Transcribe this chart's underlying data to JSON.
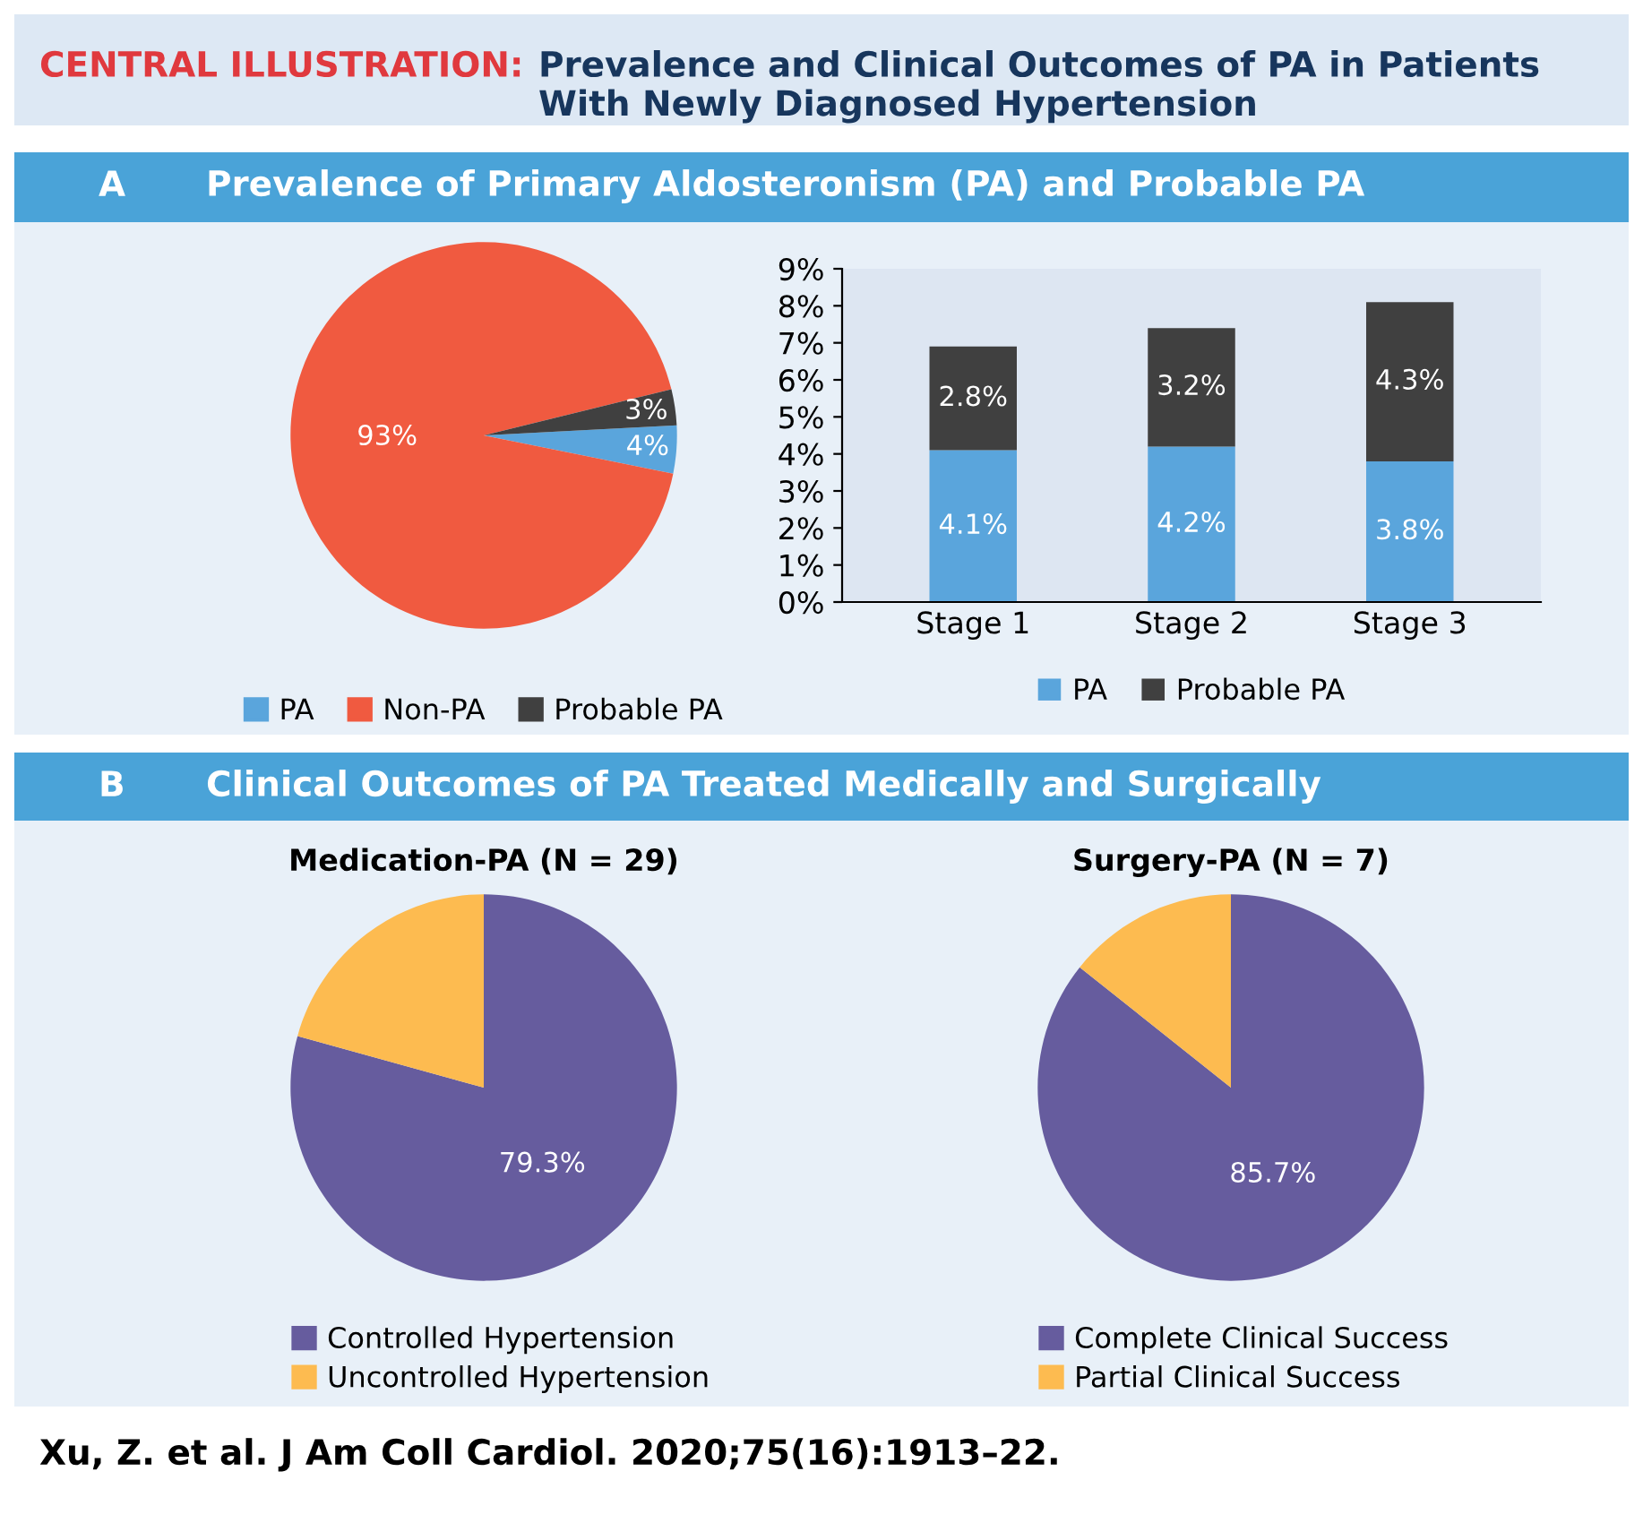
{
  "chart_data": [
    {
      "type": "other",
      "title": "CENTRAL ILLUSTRATION:",
      "subtitle": "Prevalence and Clinical Outcomes of PA in Patients With Newly Diagnosed Hypertension",
      "annotations": [
        "A",
        "Prevalence of Primary Aldosteronism (PA) and Probable PA",
        "B",
        "Clinical Outcomes of PA Treated Medically and Surgically",
        "Xu, Z. et al. J Am Coll Cardiol. 2020;75(16):1913–22."
      ]
    },
    {
      "type": "pie",
      "categories": [
        "PA",
        "Non-PA",
        "Probable PA"
      ],
      "values": [
        4,
        93,
        3
      ],
      "colors": [
        "#5aa5dc",
        "#f05a40",
        "#404040"
      ],
      "value_labels": [
        "4%",
        "93%",
        "3%"
      ],
      "legend": "bottom"
    },
    {
      "type": "bar",
      "stacked": true,
      "categories": [
        "Stage 1",
        "Stage 2",
        "Stage 3"
      ],
      "series": [
        {
          "name": "PA",
          "color": "#5aa5dc",
          "values": [
            4.1,
            4.2,
            3.8
          ],
          "value_labels": [
            "4.1%",
            "4.2%",
            "3.8%"
          ]
        },
        {
          "name": "Probable PA",
          "color": "#404040",
          "values": [
            2.8,
            3.2,
            4.3
          ],
          "value_labels": [
            "2.8%",
            "3.2%",
            "4.3%"
          ]
        }
      ],
      "ylim": [
        0,
        9
      ],
      "yticks": [
        {
          "value": 0,
          "label": "0%"
        },
        {
          "value": 1,
          "label": "1%"
        },
        {
          "value": 2,
          "label": "2%"
        },
        {
          "value": 3,
          "label": "3%"
        },
        {
          "value": 4,
          "label": "4%"
        },
        {
          "value": 5,
          "label": "5%"
        },
        {
          "value": 6,
          "label": "6%"
        },
        {
          "value": 7,
          "label": "7%"
        },
        {
          "value": 8,
          "label": "8%"
        },
        {
          "value": 9,
          "label": "9%"
        }
      ],
      "grid": false,
      "legend": "bottom"
    },
    {
      "type": "pie",
      "title": "Medication-PA (N = 29)",
      "categories": [
        "Controlled Hypertension",
        "Uncontrolled Hypertension"
      ],
      "values": [
        79.3,
        20.7
      ],
      "colors": [
        "#665c9e",
        "#fdbb50"
      ],
      "value_labels": [
        "79.3%",
        null
      ],
      "legend": "bottom"
    },
    {
      "type": "pie",
      "title": "Surgery-PA (N = 7)",
      "categories": [
        "Complete Clinical Success",
        "Partial Clinical Success"
      ],
      "values": [
        85.7,
        14.3
      ],
      "colors": [
        "#665c9e",
        "#fdbb50"
      ],
      "value_labels": [
        "85.7%",
        null
      ],
      "legend": "bottom"
    }
  ]
}
